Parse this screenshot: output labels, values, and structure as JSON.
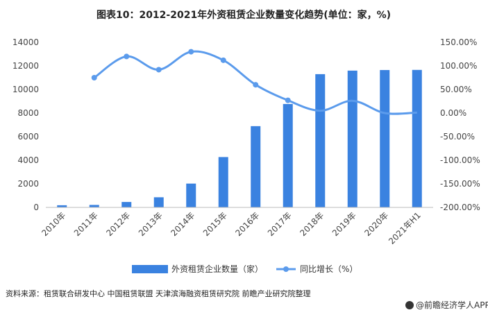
{
  "chart_data": {
    "type": "bar",
    "title": "图表10：2012-2021年外资租赁企业数量变化趋势(单位：家，%)",
    "categories": [
      "2010年",
      "2011年",
      "2012年",
      "2013年",
      "2014年",
      "2015年",
      "2016年",
      "2017年",
      "2018年",
      "2019年",
      "2020年",
      "2021年H1"
    ],
    "series": [
      {
        "name": "外资租赁企业数量（家）",
        "type": "bar",
        "axis": "left",
        "color": "#3a82e0",
        "values": [
          182,
          210,
          460,
          860,
          2020,
          4270,
          6890,
          8770,
          11300,
          11600,
          11650,
          11660
        ]
      },
      {
        "name": "同比增长（%）",
        "type": "line",
        "axis": "right",
        "color": "#5b9bec",
        "values": [
          null,
          75,
          120,
          92,
          130,
          112,
          60,
          27,
          5,
          26,
          0,
          1
        ]
      }
    ],
    "yleft": {
      "min": 0,
      "max": 14000,
      "ticks": [
        0,
        2000,
        4000,
        6000,
        8000,
        10000,
        12000,
        14000
      ],
      "tick_labels": [
        "0",
        "2000",
        "4000",
        "6000",
        "8000",
        "10000",
        "12000",
        "14000"
      ]
    },
    "yright": {
      "min": -200,
      "max": 150,
      "ticks": [
        -200,
        -150,
        -100,
        -50,
        0,
        50,
        100,
        150
      ],
      "tick_labels": [
        "-200.00%",
        "-150.00%",
        "-100.00%",
        "-50.00%",
        "0.00%",
        "50.00%",
        "100.00%",
        "150.00%"
      ]
    },
    "legend_position": "bottom",
    "grid": false
  },
  "source_text": "资料来源：租赁联合研发中心 中国租赁联盟 天津滨海融资租赁研究院 前瞻产业研究院整理",
  "brand_text": "@前瞻经济学人APP",
  "icon": "qianzhan-logo-icon"
}
